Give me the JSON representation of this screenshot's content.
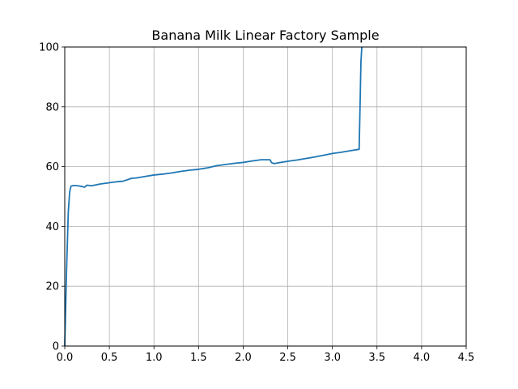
{
  "chart_data": {
    "type": "line",
    "title": "Banana Milk Linear Factory Sample",
    "xlabel": "",
    "ylabel": "",
    "xlim": [
      0,
      4.5
    ],
    "ylim": [
      0,
      100
    ],
    "x_ticks": [
      0,
      0.5,
      1,
      1.5,
      2,
      2.5,
      3,
      3.5,
      4,
      4.5
    ],
    "x_tick_labels": [
      "0.0",
      "0.5",
      "1.0",
      "1.5",
      "2.0",
      "2.5",
      "3.0",
      "3.5",
      "4.0",
      "4.5"
    ],
    "y_ticks": [
      0,
      20,
      40,
      60,
      80,
      100
    ],
    "y_tick_labels": [
      "0",
      "20",
      "40",
      "60",
      "80",
      "100"
    ],
    "grid": true,
    "line_color": "#1f77b4",
    "series": [
      {
        "x": [
          0.0,
          0.02,
          0.04,
          0.055,
          0.07,
          0.1,
          0.15,
          0.2,
          0.22,
          0.25,
          0.3,
          0.35,
          0.4,
          0.45,
          0.5,
          0.55,
          0.6,
          0.65,
          0.7,
          0.75,
          0.8,
          0.9,
          1.0,
          1.1,
          1.2,
          1.3,
          1.4,
          1.5,
          1.6,
          1.7,
          1.8,
          1.9,
          2.0,
          2.1,
          2.2,
          2.3,
          2.32,
          2.35,
          2.4,
          2.5,
          2.6,
          2.7,
          2.8,
          2.9,
          3.0,
          3.1,
          3.2,
          3.3,
          3.31,
          3.32,
          3.33
        ],
        "y": [
          0.0,
          25.0,
          45.0,
          51.5,
          53.5,
          53.7,
          53.6,
          53.3,
          53.1,
          53.8,
          53.6,
          53.9,
          54.2,
          54.4,
          54.6,
          54.8,
          55.0,
          55.1,
          55.6,
          56.1,
          56.2,
          56.7,
          57.2,
          57.5,
          57.9,
          58.4,
          58.8,
          59.1,
          59.6,
          60.3,
          60.7,
          61.1,
          61.4,
          61.9,
          62.3,
          62.3,
          61.3,
          61.0,
          61.3,
          61.8,
          62.2,
          62.7,
          63.2,
          63.8,
          64.4,
          64.8,
          65.3,
          65.8,
          80.0,
          95.0,
          100.0
        ]
      }
    ]
  }
}
